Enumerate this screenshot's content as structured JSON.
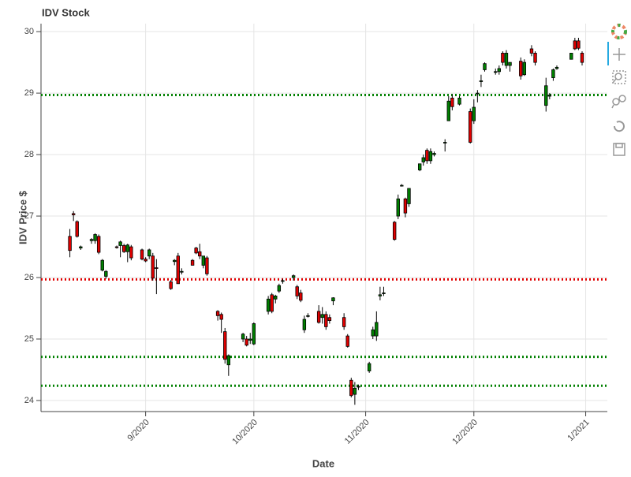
{
  "chart_data": {
    "type": "candlestick",
    "title": "IDV Stock",
    "x_label": "Date",
    "y_label": "IDV Price $",
    "increasing_color": "#008000",
    "decreasing_color": "#e00000",
    "grid": true,
    "xlim": [
      "2020-08-03",
      "2021-01-07"
    ],
    "ylim": [
      23.82,
      30.13
    ],
    "yticks": [
      24,
      25,
      26,
      27,
      28,
      29,
      30
    ],
    "xticks": [
      {
        "value": "2020-09",
        "label": "9/2020"
      },
      {
        "value": "2020-10",
        "label": "10/2020"
      },
      {
        "value": "2020-11",
        "label": "11/2020"
      },
      {
        "value": "2020-12",
        "label": "12/2020"
      },
      {
        "value": "2021-01",
        "label": "1/2021"
      }
    ],
    "hlines": [
      {
        "value": 28.97,
        "color": "#008000"
      },
      {
        "value": 25.97,
        "color": "#e00000"
      },
      {
        "value": 24.71,
        "color": "#008000"
      },
      {
        "value": 24.24,
        "color": "#008000"
      }
    ],
    "x": [
      "2020-08-11",
      "2020-08-12",
      "2020-08-13",
      "2020-08-14",
      "2020-08-17",
      "2020-08-18",
      "2020-08-19",
      "2020-08-20",
      "2020-08-21",
      "2020-08-24",
      "2020-08-25",
      "2020-08-26",
      "2020-08-27",
      "2020-08-28",
      "2020-08-31",
      "2020-09-01",
      "2020-09-02",
      "2020-09-03",
      "2020-09-04",
      "2020-09-08",
      "2020-09-09",
      "2020-09-10",
      "2020-09-11",
      "2020-09-14",
      "2020-09-15",
      "2020-09-16",
      "2020-09-17",
      "2020-09-18",
      "2020-09-21",
      "2020-09-22",
      "2020-09-23",
      "2020-09-24",
      "2020-09-28",
      "2020-09-29",
      "2020-09-30",
      "2020-10-01",
      "2020-10-05",
      "2020-10-06",
      "2020-10-07",
      "2020-10-08",
      "2020-10-09",
      "2020-10-12",
      "2020-10-13",
      "2020-10-14",
      "2020-10-15",
      "2020-10-16",
      "2020-10-19",
      "2020-10-20",
      "2020-10-21",
      "2020-10-22",
      "2020-10-23",
      "2020-10-26",
      "2020-10-27",
      "2020-10-28",
      "2020-10-29",
      "2020-10-30",
      "2020-11-02",
      "2020-11-03",
      "2020-11-04",
      "2020-11-05",
      "2020-11-06",
      "2020-11-09",
      "2020-11-10",
      "2020-11-11",
      "2020-11-12",
      "2020-11-13",
      "2020-11-16",
      "2020-11-17",
      "2020-11-18",
      "2020-11-19",
      "2020-11-20",
      "2020-11-23",
      "2020-11-24",
      "2020-11-25",
      "2020-11-27",
      "2020-11-30",
      "2020-12-01",
      "2020-12-02",
      "2020-12-03",
      "2020-12-04",
      "2020-12-07",
      "2020-12-08",
      "2020-12-09",
      "2020-12-10",
      "2020-12-11",
      "2020-12-14",
      "2020-12-15",
      "2020-12-17",
      "2020-12-18",
      "2020-12-21",
      "2020-12-22",
      "2020-12-23",
      "2020-12-24",
      "2020-12-28",
      "2020-12-29",
      "2020-12-30",
      "2020-12-31"
    ],
    "open": [
      26.67,
      27.04,
      26.91,
      26.48,
      26.6,
      26.6,
      26.67,
      26.12,
      26.02,
      26.5,
      26.52,
      26.52,
      26.42,
      26.5,
      26.45,
      26.3,
      26.35,
      26.35,
      26.16,
      25.93,
      26.26,
      26.35,
      26.1,
      26.28,
      26.48,
      26.42,
      26.2,
      26.32,
      25.45,
      25.4,
      25.12,
      24.58,
      25.0,
      25.0,
      24.98,
      24.92,
      25.45,
      25.72,
      25.65,
      25.78,
      25.95,
      26.0,
      25.85,
      25.75,
      25.15,
      25.37,
      25.45,
      25.35,
      25.4,
      25.35,
      25.62,
      25.35,
      25.05,
      24.33,
      24.1,
      24.22,
      24.48,
      25.05,
      25.05,
      25.7,
      25.75,
      26.9,
      27.0,
      27.5,
      27.28,
      27.2,
      27.75,
      27.88,
      28.07,
      27.9,
      28.0,
      28.2,
      28.55,
      28.92,
      28.82,
      28.7,
      28.55,
      29.0,
      29.2,
      29.38,
      29.35,
      29.35,
      29.65,
      29.45,
      29.45,
      29.52,
      29.3,
      29.72,
      29.65,
      28.8,
      28.95,
      29.25,
      29.4,
      29.55,
      29.85,
      29.85,
      29.65
    ],
    "high": [
      26.79,
      27.08,
      26.93,
      26.52,
      26.64,
      26.72,
      26.7,
      26.3,
      26.12,
      26.52,
      26.6,
      26.55,
      26.55,
      26.53,
      26.47,
      26.33,
      26.47,
      26.4,
      26.3,
      25.96,
      26.3,
      26.4,
      26.15,
      26.3,
      26.5,
      26.55,
      26.35,
      26.35,
      25.47,
      25.43,
      25.18,
      24.75,
      25.1,
      25.05,
      25.1,
      25.27,
      25.7,
      25.75,
      25.72,
      25.9,
      25.98,
      26.05,
      25.88,
      25.8,
      25.38,
      25.42,
      25.55,
      25.52,
      25.45,
      25.4,
      25.68,
      25.42,
      25.08,
      24.37,
      24.3,
      24.26,
      24.63,
      25.2,
      25.45,
      25.85,
      25.85,
      26.92,
      27.35,
      27.52,
      27.3,
      27.45,
      27.85,
      28.0,
      28.1,
      28.1,
      28.05,
      28.25,
      28.95,
      28.98,
      28.95,
      28.75,
      28.9,
      29.05,
      29.3,
      29.5,
      29.4,
      29.45,
      29.68,
      29.7,
      29.5,
      29.58,
      29.55,
      29.78,
      29.68,
      29.25,
      29.0,
      29.4,
      29.45,
      29.65,
      29.9,
      29.9,
      29.68
    ],
    "low": [
      26.33,
      26.92,
      26.65,
      26.45,
      26.55,
      26.55,
      26.38,
      26.1,
      25.98,
      26.47,
      26.33,
      26.4,
      26.25,
      26.28,
      26.28,
      26.25,
      26.3,
      25.95,
      25.73,
      25.8,
      26.2,
      25.9,
      26.05,
      26.2,
      26.38,
      26.3,
      26.15,
      26.03,
      25.3,
      25.1,
      24.6,
      24.4,
      24.95,
      24.88,
      24.92,
      24.9,
      25.4,
      25.42,
      25.58,
      25.75,
      25.9,
      25.95,
      25.65,
      25.6,
      25.1,
      25.35,
      25.25,
      25.25,
      25.15,
      25.25,
      25.55,
      25.15,
      24.86,
      24.05,
      23.93,
      24.17,
      24.45,
      25.0,
      24.97,
      25.63,
      25.7,
      26.6,
      26.95,
      27.48,
      26.98,
      27.15,
      27.73,
      27.82,
      27.85,
      27.85,
      27.97,
      28.05,
      28.55,
      28.72,
      28.8,
      28.18,
      28.5,
      28.85,
      29.1,
      29.35,
      29.3,
      29.3,
      29.45,
      29.4,
      29.35,
      29.22,
      29.28,
      29.6,
      29.45,
      28.7,
      28.9,
      29.2,
      29.38,
      29.55,
      29.7,
      29.7,
      29.45
    ],
    "close": [
      26.44,
      27.02,
      26.67,
      26.5,
      26.62,
      26.7,
      26.41,
      26.28,
      26.1,
      26.49,
      26.58,
      26.42,
      26.53,
      26.32,
      26.3,
      26.27,
      26.45,
      25.99,
      26.15,
      25.82,
      26.28,
      25.9,
      26.1,
      26.2,
      26.4,
      26.35,
      26.35,
      26.06,
      25.38,
      25.32,
      24.67,
      24.73,
      25.08,
      24.9,
      25.0,
      25.25,
      25.65,
      25.45,
      25.7,
      25.87,
      25.95,
      26.03,
      25.7,
      25.63,
      25.32,
      25.38,
      25.27,
      25.4,
      25.2,
      25.3,
      25.67,
      25.2,
      24.88,
      24.08,
      24.2,
      24.23,
      24.6,
      25.15,
      25.27,
      25.72,
      25.75,
      26.62,
      27.28,
      27.5,
      27.05,
      27.45,
      27.85,
      27.95,
      27.9,
      28.05,
      28.02,
      28.2,
      28.87,
      28.78,
      28.92,
      28.2,
      28.77,
      29.0,
      29.2,
      29.48,
      29.35,
      29.4,
      29.5,
      29.65,
      29.5,
      29.28,
      29.5,
      29.65,
      29.5,
      29.12,
      28.97,
      29.38,
      29.42,
      29.65,
      29.72,
      29.73,
      29.5
    ]
  }
}
